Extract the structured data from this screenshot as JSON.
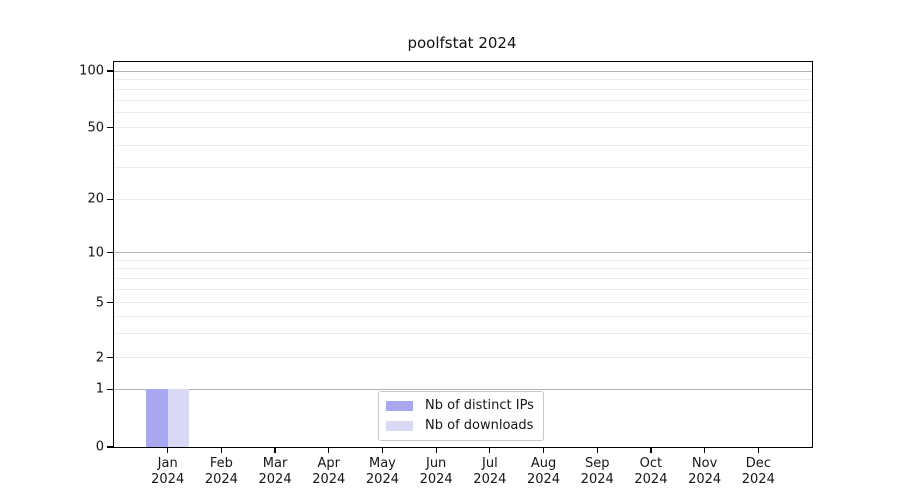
{
  "title": "poolfstat 2024",
  "chart_data": {
    "type": "bar",
    "title": "poolfstat 2024",
    "x_tick_months": [
      "Jan",
      "Feb",
      "Mar",
      "Apr",
      "May",
      "Jun",
      "Jul",
      "Aug",
      "Sep",
      "Oct",
      "Nov",
      "Dec"
    ],
    "x_tick_year": "2024",
    "series": [
      {
        "name": "Nb of distinct IPs",
        "color": "#a8a8f2",
        "values": [
          1,
          0,
          0,
          0,
          0,
          0,
          0,
          0,
          0,
          0,
          0,
          0
        ]
      },
      {
        "name": "Nb of downloads",
        "color": "#d9d9f7",
        "values": [
          1,
          0,
          0,
          0,
          0,
          0,
          0,
          0,
          0,
          0,
          0,
          0
        ]
      }
    ],
    "yscale": "symlog",
    "ylim": [
      0,
      100
    ],
    "y_tick_values": [
      100,
      50,
      20,
      10,
      5,
      2,
      1,
      0
    ],
    "y_grid_major": [
      1,
      10,
      100
    ],
    "y_grid_minor": [
      2,
      3,
      4,
      5,
      6,
      7,
      8,
      9,
      20,
      30,
      40,
      50,
      60,
      70,
      80,
      90
    ],
    "grid": "both",
    "legend_position": "lower center inside"
  },
  "legend": {
    "items": [
      {
        "label": "Nb of distinct IPs",
        "color": "#a8a8f2"
      },
      {
        "label": "Nb of downloads",
        "color": "#d9d9f7"
      }
    ]
  },
  "colors": {
    "background": "#ffffff",
    "spine": "#000000",
    "grid_major": "#b2b2b2",
    "grid_minor": "#ebebeb",
    "text": "#161616",
    "legend_border": "#c9c9c9",
    "bar_distinct_ips": "#a8a8f2",
    "bar_downloads": "#d9d9f7"
  }
}
